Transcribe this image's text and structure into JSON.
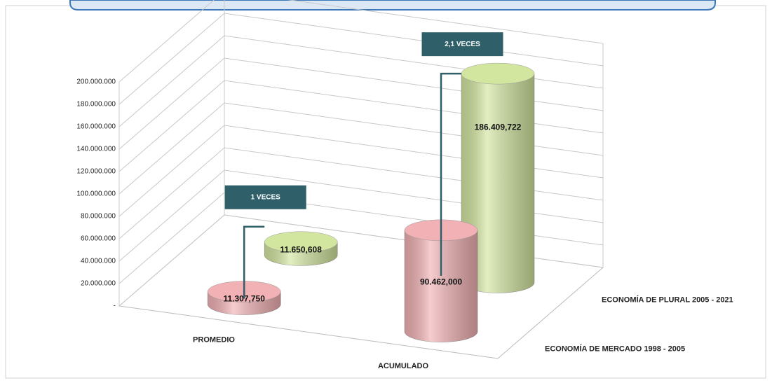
{
  "chart_data": {
    "type": "bar3d",
    "categories": [
      "PROMEDIO",
      "ACUMULADO"
    ],
    "series": [
      {
        "name": "ECONOMÍA DE MERCADO 1998 - 2005",
        "color": "#f2b1b4",
        "values": [
          11307750,
          90462000
        ],
        "value_labels": [
          "11.307,750",
          "90.462,000"
        ]
      },
      {
        "name": "ECONOMÍA DE PLURAL 2005 - 2021",
        "color": "#d3e6a0",
        "values": [
          11650608,
          186409722
        ],
        "value_labels": [
          "11.650,608",
          "186.409,722"
        ]
      }
    ],
    "annotations": [
      "1 VECES",
      "2,1 VECES"
    ],
    "ylim": [
      0,
      200000000
    ],
    "yticks": [
      {
        "value": 0,
        "label": "-"
      },
      {
        "value": 20000000,
        "label": "20.000.000"
      },
      {
        "value": 40000000,
        "label": "40.000.000"
      },
      {
        "value": 60000000,
        "label": "60.000.000"
      },
      {
        "value": 80000000,
        "label": "80.000.000"
      },
      {
        "value": 100000000,
        "label": "100.000.000"
      },
      {
        "value": 120000000,
        "label": "120.000.000"
      },
      {
        "value": 140000000,
        "label": "140.000.000"
      },
      {
        "value": 160000000,
        "label": "160.000.000"
      },
      {
        "value": 180000000,
        "label": "180.000.000"
      },
      {
        "value": 200000000,
        "label": "200.000.000"
      }
    ],
    "grid": true
  }
}
